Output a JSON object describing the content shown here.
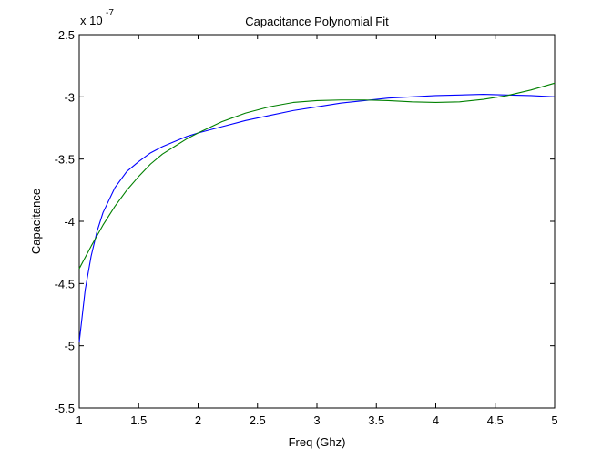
{
  "chart_data": {
    "type": "line",
    "title": "Capacitance Polynomial Fit",
    "xlabel": "Freq (Ghz)",
    "ylabel": "Capacitance",
    "y_multiplier": {
      "base": "x 10",
      "exponent": "-7"
    },
    "xlim": [
      1,
      5
    ],
    "ylim": [
      -5.5,
      -2.5
    ],
    "x_ticks": [
      1,
      1.5,
      2,
      2.5,
      3,
      3.5,
      4,
      4.5,
      5
    ],
    "x_tick_labels": [
      "1",
      "1.5",
      "2",
      "2.5",
      "3",
      "3.5",
      "4",
      "4.5",
      "5"
    ],
    "y_ticks": [
      -5.5,
      -5,
      -4.5,
      -4,
      -3.5,
      -3,
      -2.5
    ],
    "y_tick_labels": [
      "-5.5",
      "-5",
      "-4.5",
      "-4",
      "-3.5",
      "-3",
      "-2.5"
    ],
    "grid": false,
    "series": [
      {
        "color": "#0000ff",
        "x": [
          1.0,
          1.05,
          1.1,
          1.15,
          1.2,
          1.3,
          1.4,
          1.5,
          1.6,
          1.7,
          1.8,
          1.9,
          2.0,
          2.2,
          2.4,
          2.6,
          2.8,
          3.0,
          3.2,
          3.4,
          3.6,
          3.8,
          4.0,
          4.2,
          4.4,
          4.6,
          4.8,
          5.0
        ],
        "y": [
          -4.97,
          -4.55,
          -4.28,
          -4.08,
          -3.93,
          -3.73,
          -3.6,
          -3.52,
          -3.45,
          -3.4,
          -3.36,
          -3.32,
          -3.29,
          -3.24,
          -3.19,
          -3.15,
          -3.11,
          -3.08,
          -3.05,
          -3.03,
          -3.01,
          -3.0,
          -2.99,
          -2.985,
          -2.98,
          -2.985,
          -2.99,
          -3.0
        ]
      },
      {
        "color": "#008000",
        "x": [
          1.0,
          1.1,
          1.2,
          1.3,
          1.4,
          1.5,
          1.6,
          1.7,
          1.8,
          1.9,
          2.0,
          2.2,
          2.4,
          2.6,
          2.8,
          3.0,
          3.2,
          3.4,
          3.6,
          3.8,
          4.0,
          4.2,
          4.4,
          4.6,
          4.8,
          5.0
        ],
        "y": [
          -4.38,
          -4.2,
          -4.03,
          -3.88,
          -3.75,
          -3.64,
          -3.54,
          -3.46,
          -3.4,
          -3.34,
          -3.29,
          -3.2,
          -3.13,
          -3.08,
          -3.045,
          -3.03,
          -3.025,
          -3.025,
          -3.03,
          -3.04,
          -3.045,
          -3.04,
          -3.02,
          -2.99,
          -2.945,
          -2.89
        ]
      }
    ]
  }
}
